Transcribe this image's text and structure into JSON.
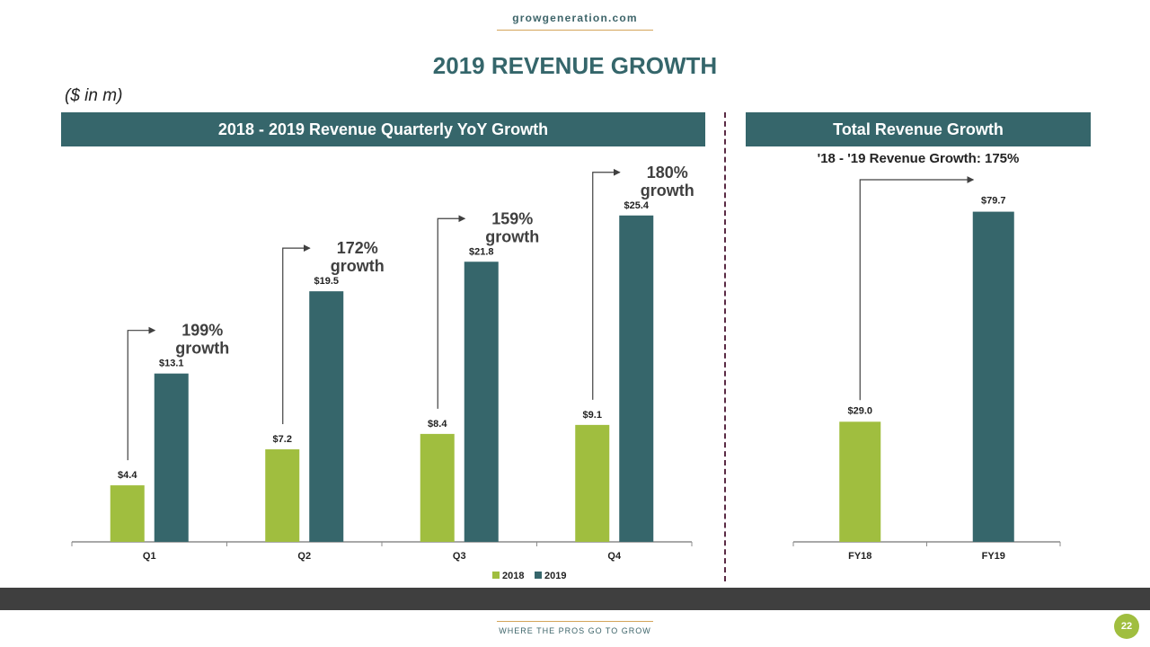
{
  "header": {
    "site": "growgeneration.com",
    "title": "2019 REVENUE GROWTH",
    "units": "($ in m)"
  },
  "footer": {
    "tagline": "WHERE THE PROS GO TO GROW",
    "page_number": "22"
  },
  "colors": {
    "brand_teal": "#36666b",
    "brand_green": "#a0be3f",
    "accent_gold": "#d4a55a",
    "divider": "#5a2a44"
  },
  "chart_data": [
    {
      "type": "bar",
      "title": "2018 - 2019 Revenue Quarterly YoY Growth",
      "categories": [
        "Q1",
        "Q2",
        "Q3",
        "Q4"
      ],
      "series": [
        {
          "name": "2018",
          "values": [
            4.4,
            7.2,
            8.4,
            9.1
          ],
          "labels": [
            "$4.4",
            "$7.2",
            "$8.4",
            "$9.1"
          ],
          "color": "#a0be3f"
        },
        {
          "name": "2019",
          "values": [
            13.1,
            19.5,
            21.8,
            25.4
          ],
          "labels": [
            "$13.1",
            "$19.5",
            "$21.8",
            "$25.4"
          ],
          "color": "#36666b"
        }
      ],
      "annotations": [
        {
          "pct": "199%",
          "word": "growth"
        },
        {
          "pct": "172%",
          "word": "growth"
        },
        {
          "pct": "159%",
          "word": "growth"
        },
        {
          "pct": "180%",
          "word": "growth"
        }
      ],
      "legend": [
        "2018",
        "2019"
      ],
      "legend_position": "bottom-right",
      "ylim": [
        0,
        26
      ],
      "grid": false,
      "xlabel": "",
      "ylabel": ""
    },
    {
      "type": "bar",
      "title": "Total Revenue Growth",
      "subtitle": "'18 - '19 Revenue Growth: 175%",
      "categories": [
        "FY18",
        "FY19"
      ],
      "values": [
        29.0,
        79.7
      ],
      "labels": [
        "$29.0",
        "$79.7"
      ],
      "colors": [
        "#a0be3f",
        "#36666b"
      ],
      "ylim": [
        0,
        80
      ],
      "grid": false,
      "xlabel": "",
      "ylabel": ""
    }
  ]
}
